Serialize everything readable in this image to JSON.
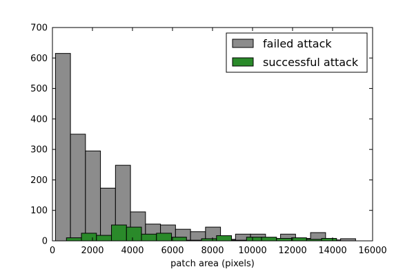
{
  "chart_data": {
    "type": "bar",
    "xlabel": "patch area (pixels)",
    "ylabel": "",
    "xlim": [
      0,
      16000
    ],
    "ylim": [
      0,
      700
    ],
    "xticks": [
      0,
      2000,
      4000,
      6000,
      8000,
      10000,
      12000,
      14000,
      16000
    ],
    "yticks": [
      0,
      100,
      200,
      300,
      400,
      500,
      600,
      700
    ],
    "grid": false,
    "legend_position": "top-right",
    "series": [
      {
        "name": "failed attack",
        "color": "#8c8c8c",
        "bins": [
          {
            "x0": 150,
            "x1": 900,
            "value": 615
          },
          {
            "x0": 900,
            "x1": 1650,
            "value": 350
          },
          {
            "x0": 1650,
            "x1": 2400,
            "value": 295
          },
          {
            "x0": 2400,
            "x1": 3150,
            "value": 173
          },
          {
            "x0": 3150,
            "x1": 3900,
            "value": 248
          },
          {
            "x0": 3900,
            "x1": 4650,
            "value": 95
          },
          {
            "x0": 4650,
            "x1": 5400,
            "value": 55
          },
          {
            "x0": 5400,
            "x1": 6150,
            "value": 52
          },
          {
            "x0": 6150,
            "x1": 6900,
            "value": 38
          },
          {
            "x0": 6900,
            "x1": 7650,
            "value": 30
          },
          {
            "x0": 7650,
            "x1": 8400,
            "value": 45
          },
          {
            "x0": 8400,
            "x1": 9150,
            "value": 5
          },
          {
            "x0": 9150,
            "x1": 9900,
            "value": 22
          },
          {
            "x0": 9900,
            "x1": 10650,
            "value": 22
          },
          {
            "x0": 10650,
            "x1": 11400,
            "value": 5
          },
          {
            "x0": 11400,
            "x1": 12150,
            "value": 22
          },
          {
            "x0": 12150,
            "x1": 12900,
            "value": 8
          },
          {
            "x0": 12900,
            "x1": 13650,
            "value": 27
          },
          {
            "x0": 13650,
            "x1": 14400,
            "value": 3
          },
          {
            "x0": 14400,
            "x1": 15150,
            "value": 7
          }
        ]
      },
      {
        "name": "successful attack",
        "color": "#2a8a2a",
        "bins": [
          {
            "x0": 700,
            "x1": 1450,
            "value": 10
          },
          {
            "x0": 1450,
            "x1": 2200,
            "value": 25
          },
          {
            "x0": 2200,
            "x1": 2950,
            "value": 18
          },
          {
            "x0": 2950,
            "x1": 3700,
            "value": 52
          },
          {
            "x0": 3700,
            "x1": 4450,
            "value": 45
          },
          {
            "x0": 4450,
            "x1": 5200,
            "value": 22
          },
          {
            "x0": 5200,
            "x1": 5950,
            "value": 25
          },
          {
            "x0": 5950,
            "x1": 6700,
            "value": 12
          },
          {
            "x0": 6700,
            "x1": 7450,
            "value": 2
          },
          {
            "x0": 7450,
            "x1": 8200,
            "value": 7
          },
          {
            "x0": 8200,
            "x1": 8950,
            "value": 17
          },
          {
            "x0": 8950,
            "x1": 9700,
            "value": 2
          },
          {
            "x0": 9700,
            "x1": 10450,
            "value": 12
          },
          {
            "x0": 10450,
            "x1": 11200,
            "value": 12
          },
          {
            "x0": 11200,
            "x1": 11950,
            "value": 8
          },
          {
            "x0": 11950,
            "x1": 12700,
            "value": 10
          },
          {
            "x0": 12700,
            "x1": 13450,
            "value": 5
          },
          {
            "x0": 13450,
            "x1": 14200,
            "value": 8
          }
        ]
      }
    ]
  }
}
